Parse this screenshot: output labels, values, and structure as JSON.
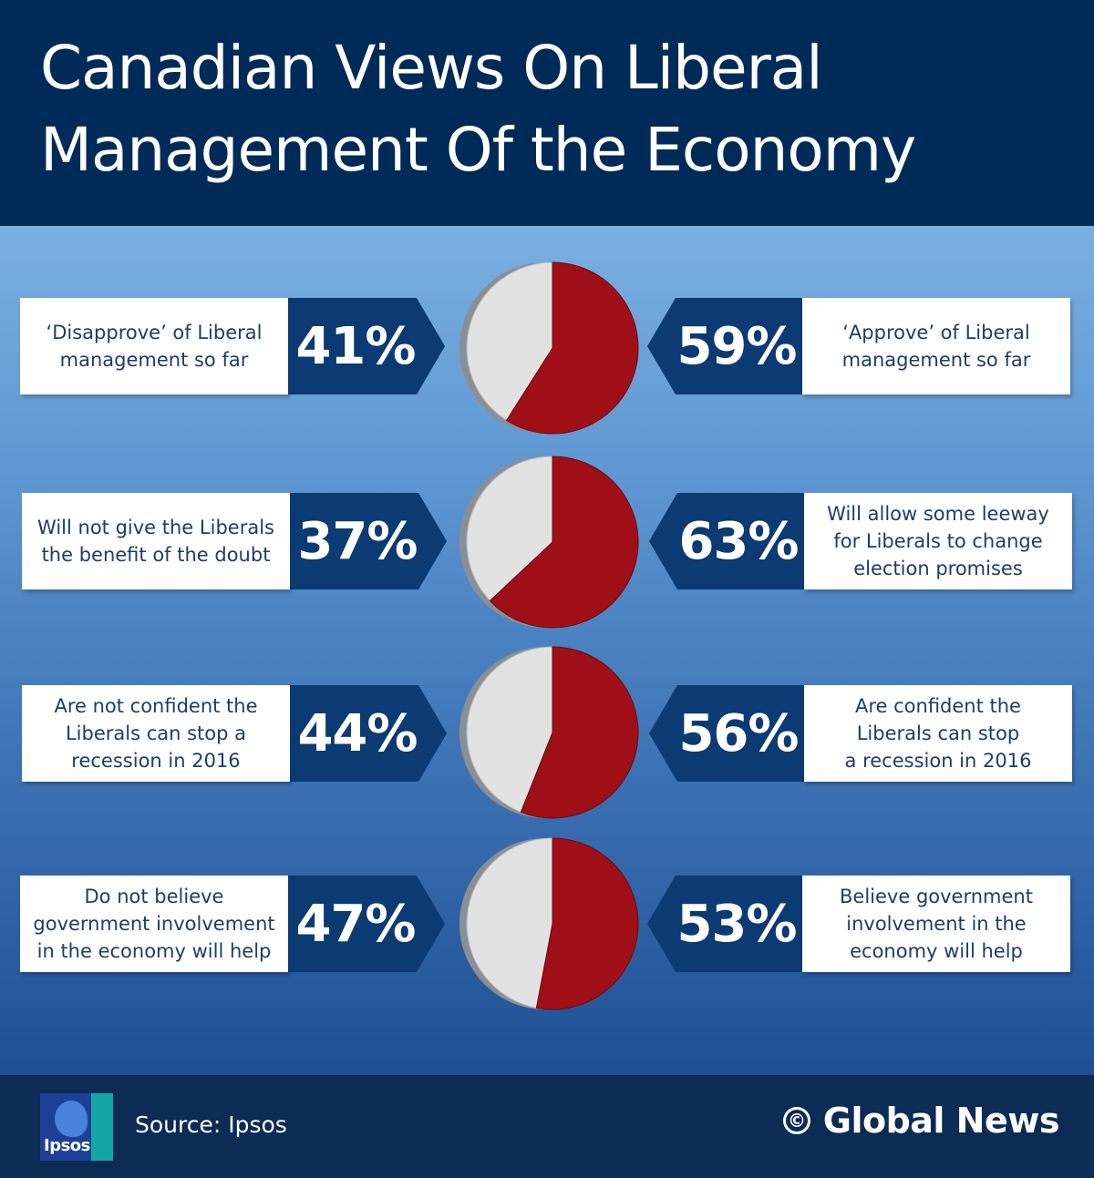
{
  "header": {
    "title_line1": "Canadian Views On Liberal",
    "title_line2": "Management Of the Economy"
  },
  "colors": {
    "approve": "#9e0f18",
    "disapprove": "#e2e2e2",
    "pct_box": "#0c3a72",
    "header_bg": "#002a58"
  },
  "chart_data": {
    "type": "pie",
    "title": "Canadian Views On Liberal Management Of the Economy",
    "pies": [
      {
        "left": {
          "label": "‘Disapprove’ of Liberal\nmanagement so far",
          "value": 41,
          "value_label": "41%"
        },
        "right": {
          "label": "‘Approve’ of Liberal\nmanagement so far",
          "value": 59,
          "value_label": "59%"
        }
      },
      {
        "left": {
          "label": "Will not give the Liberals\nthe benefit of the doubt",
          "value": 37,
          "value_label": "37%"
        },
        "right": {
          "label": "Will allow some leeway\nfor Liberals to change\nelection promises",
          "value": 63,
          "value_label": "63%"
        }
      },
      {
        "left": {
          "label": "Are not confident the\nLiberals can stop a\nrecession in 2016",
          "value": 44,
          "value_label": "44%"
        },
        "right": {
          "label": "Are confident the\nLiberals can stop\na recession in 2016",
          "value": 56,
          "value_label": "56%"
        }
      },
      {
        "left": {
          "label": "Do not believe\ngovernment involvement\nin the economy will help",
          "value": 47,
          "value_label": "47%"
        },
        "right": {
          "label": "Believe government\ninvolvement in the\neconomy will help",
          "value": 53,
          "value_label": "53%"
        }
      }
    ]
  },
  "footer": {
    "logo_text": "Ipsos",
    "source": "Source: Ipsos",
    "copyright_symbol": "©",
    "credit": "Global News"
  }
}
